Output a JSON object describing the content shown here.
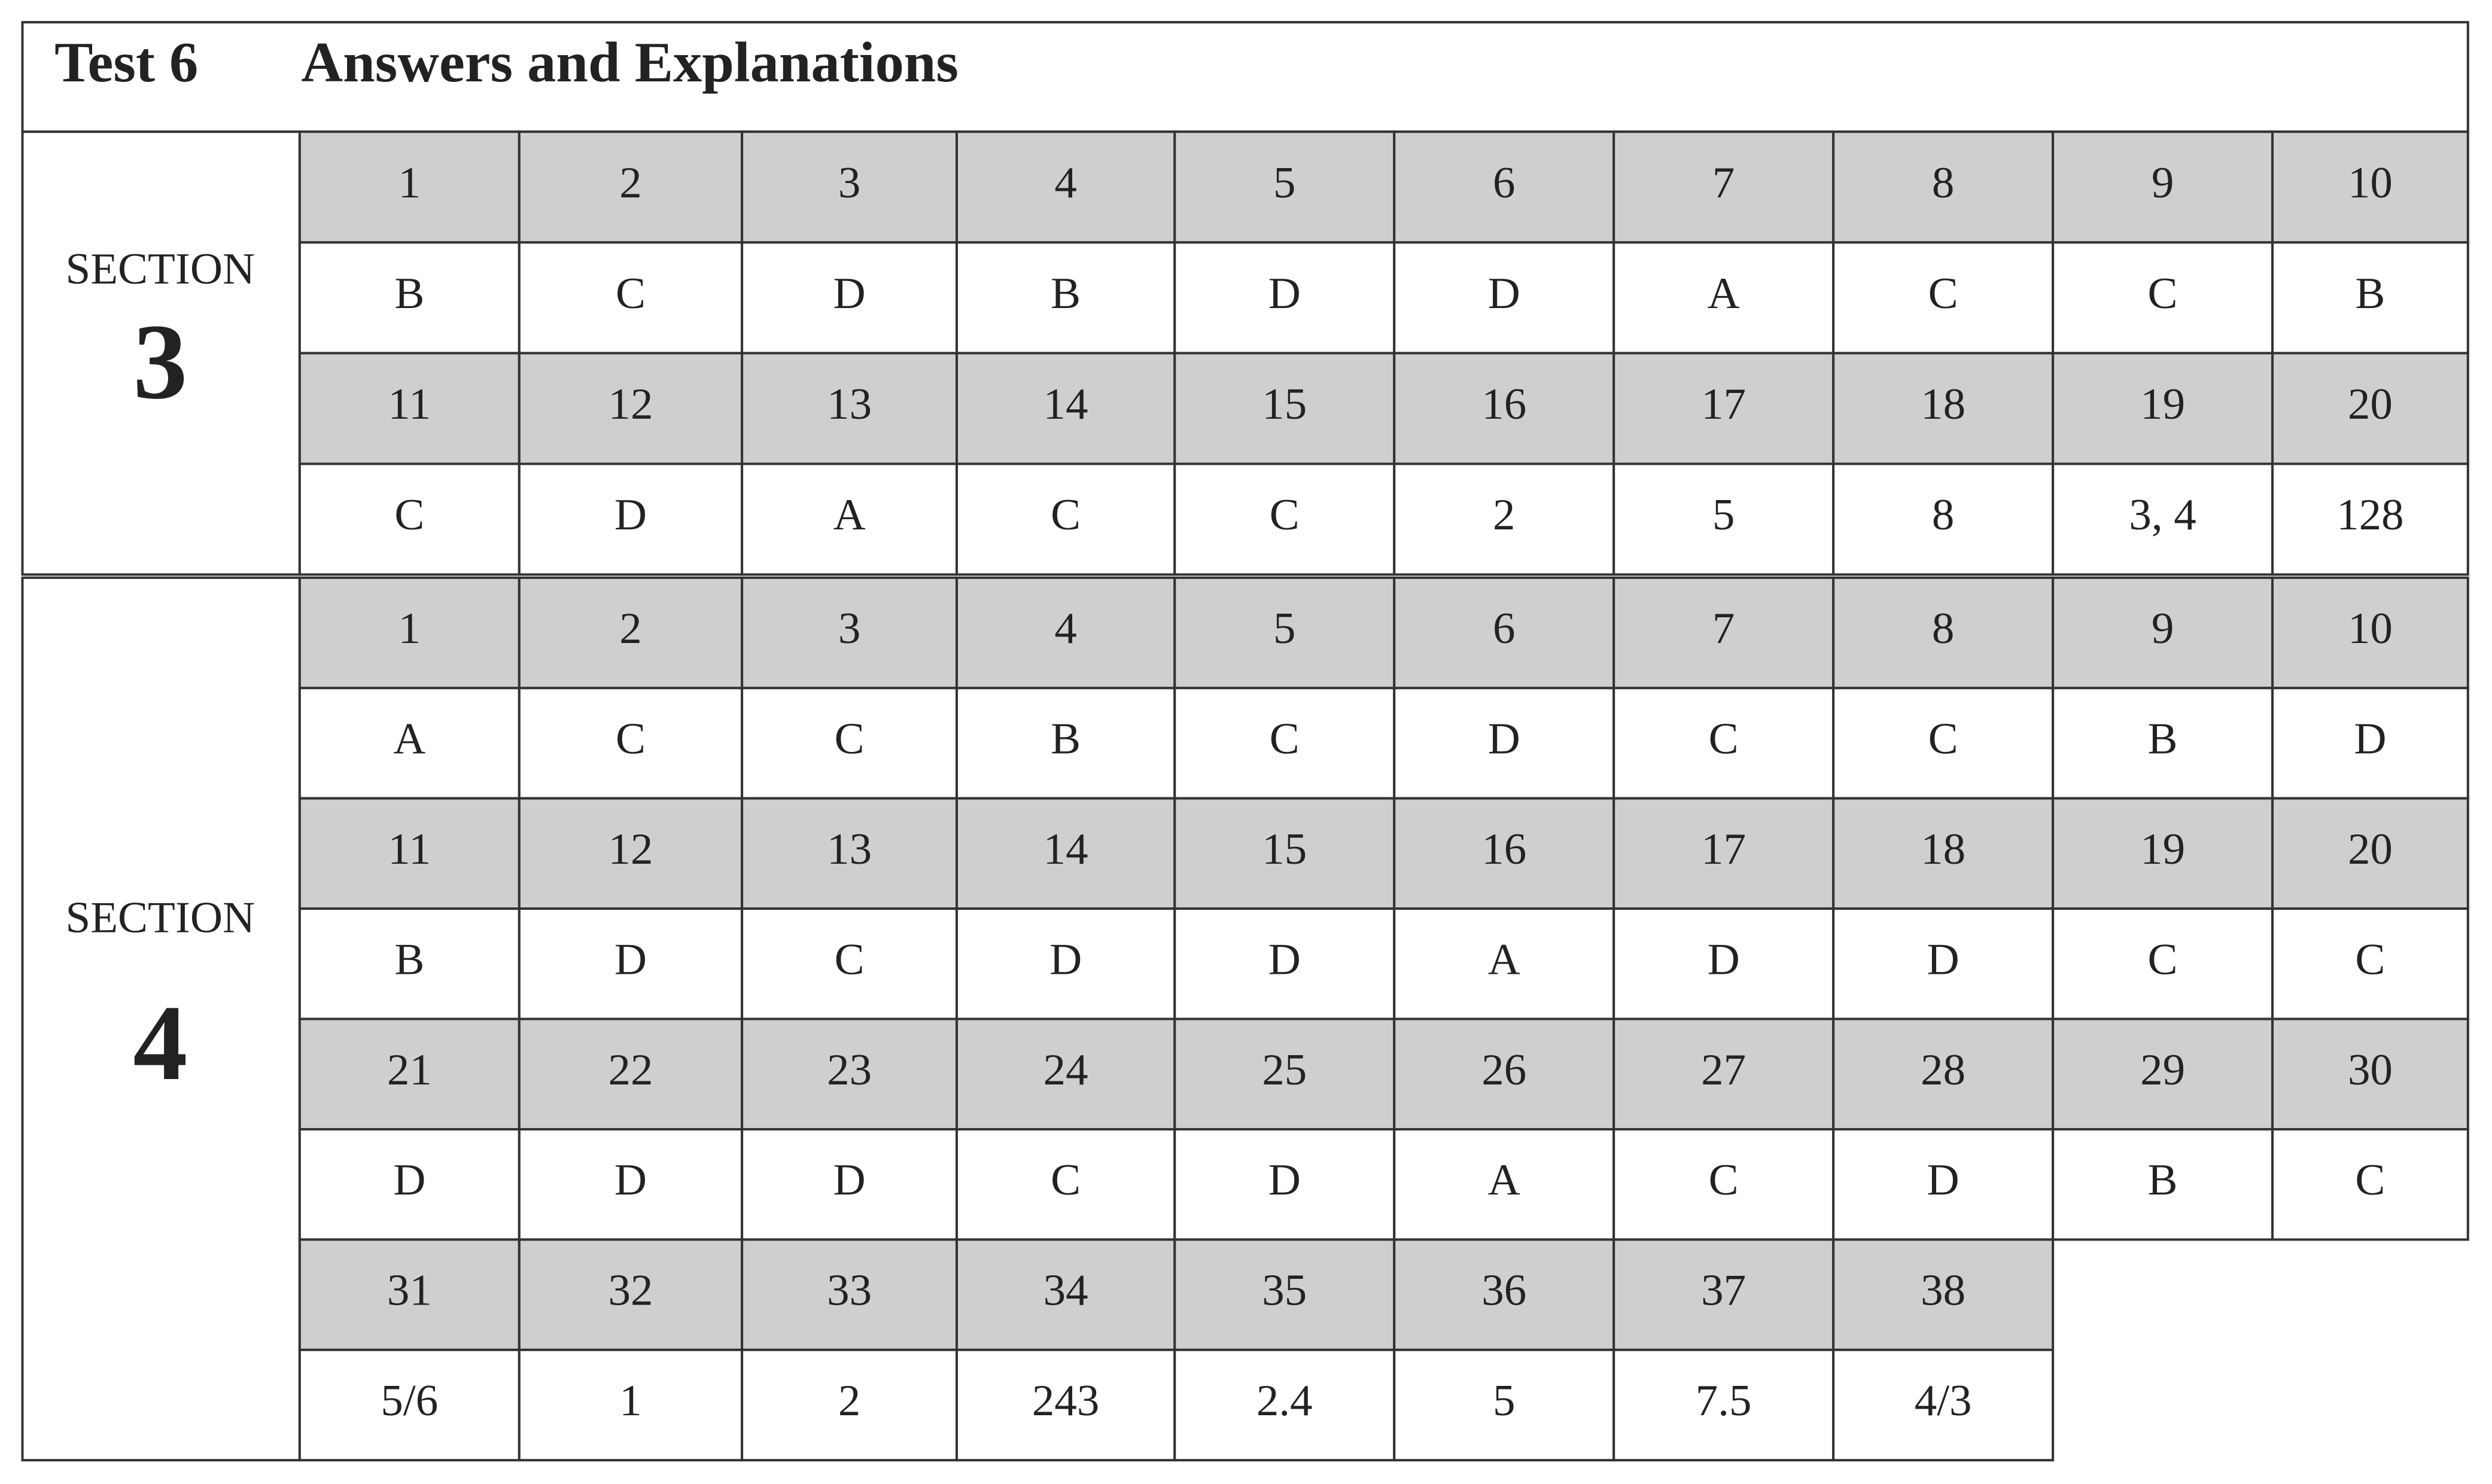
{
  "header": {
    "test": "Test 6",
    "title": "Answers and Explanations"
  },
  "sections": [
    {
      "label": "SECTION",
      "number": "3",
      "rows": [
        {
          "questions": [
            1,
            2,
            3,
            4,
            5,
            6,
            7,
            8,
            9,
            10
          ],
          "answers": [
            "B",
            "C",
            "D",
            "B",
            "D",
            "D",
            "A",
            "C",
            "C",
            "B"
          ]
        },
        {
          "questions": [
            11,
            12,
            13,
            14,
            15,
            16,
            17,
            18,
            19,
            20
          ],
          "answers": [
            "C",
            "D",
            "A",
            "C",
            "C",
            "2",
            "5",
            "8",
            "3, 4",
            "128"
          ]
        }
      ]
    },
    {
      "label": "SECTION",
      "number": "4",
      "rows": [
        {
          "questions": [
            1,
            2,
            3,
            4,
            5,
            6,
            7,
            8,
            9,
            10
          ],
          "answers": [
            "A",
            "C",
            "C",
            "B",
            "C",
            "D",
            "C",
            "C",
            "B",
            "D"
          ]
        },
        {
          "questions": [
            11,
            12,
            13,
            14,
            15,
            16,
            17,
            18,
            19,
            20
          ],
          "answers": [
            "B",
            "D",
            "C",
            "D",
            "D",
            "A",
            "D",
            "D",
            "C",
            "C"
          ]
        },
        {
          "questions": [
            21,
            22,
            23,
            24,
            25,
            26,
            27,
            28,
            29,
            30
          ],
          "answers": [
            "D",
            "D",
            "D",
            "C",
            "D",
            "A",
            "C",
            "D",
            "B",
            "C"
          ]
        },
        {
          "questions": [
            31,
            32,
            33,
            34,
            35,
            36,
            37,
            38
          ],
          "answers": [
            "5/6",
            "1",
            "2",
            "243",
            "2.4",
            "5",
            "7.5",
            "4/3"
          ]
        }
      ]
    }
  ]
}
